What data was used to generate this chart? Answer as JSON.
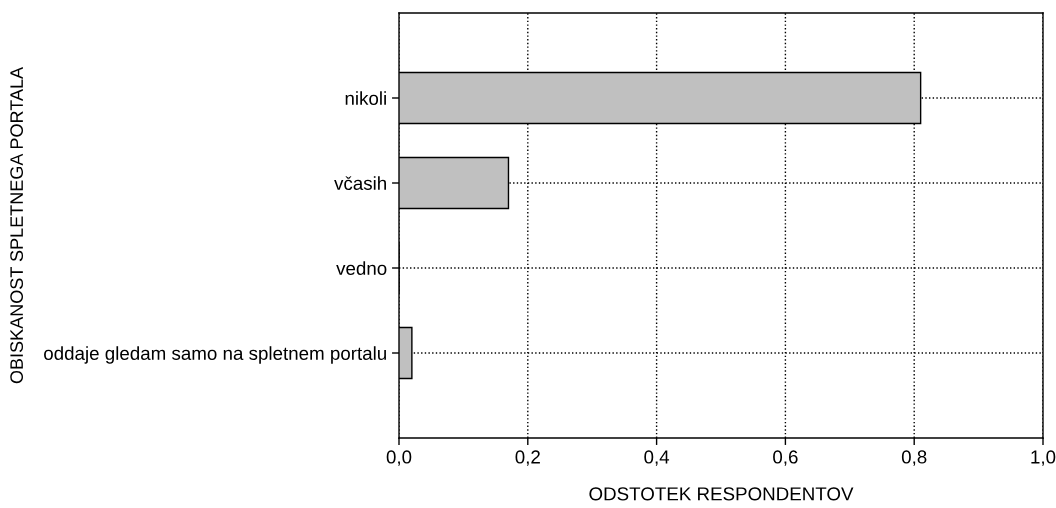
{
  "chart_data": {
    "type": "bar",
    "orientation": "horizontal",
    "categories": [
      "nikoli",
      "včasih",
      "vedno",
      "oddaje gledam samo na spletnem portalu"
    ],
    "values": [
      0.81,
      0.17,
      0,
      0.02
    ],
    "color": "#c0c0c0",
    "xlim": [
      0,
      1
    ],
    "xticks": [
      {
        "value": 0,
        "label": "0,0"
      },
      {
        "value": 0.2,
        "label": "0,2"
      },
      {
        "value": 0.4,
        "label": "0,4"
      },
      {
        "value": 0.6,
        "label": "0,6"
      },
      {
        "value": 0.8,
        "label": "0,8"
      },
      {
        "value": 1,
        "label": "1,0"
      }
    ],
    "xlabel": "ODSTOTEK RESPONDENTOV",
    "ylabel": "OBISKANOST SPLETNEGA PORTALA",
    "grid": true
  }
}
